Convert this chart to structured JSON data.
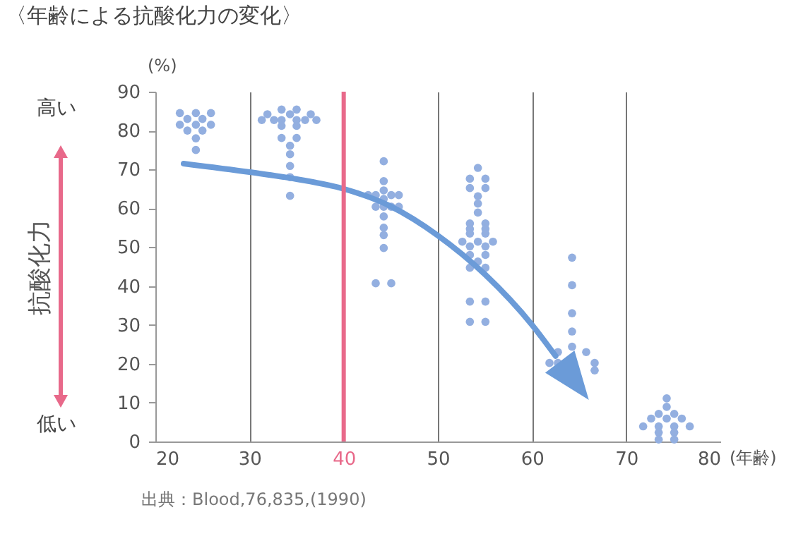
{
  "chart_data": {
    "type": "scatter",
    "title": "〈年齢による抗酸化力の変化〉",
    "xlabel": "(年齢)",
    "ylabel": "(%)",
    "annotations": [
      "抗酸化力",
      "高い",
      "低い",
      "出典：Blood,76,835,(1990)"
    ],
    "xlim": [
      20,
      80
    ],
    "xticks": [
      20,
      30,
      40,
      50,
      60,
      70,
      80
    ],
    "ylim": [
      0,
      90
    ],
    "yticks": [
      0,
      10,
      20,
      30,
      40,
      50,
      60,
      70,
      80,
      90
    ],
    "grid": "x",
    "marker": "circle",
    "ref_lines": [
      {
        "axis": "x",
        "value": 40,
        "color": "#e8698a"
      }
    ],
    "series": [
      {
        "color": "#93afe0",
        "x": [
          22.6,
          24.3,
          25.9,
          23.4,
          25.0,
          22.6,
          24.3,
          25.9,
          23.4,
          25.0,
          24.3,
          24.3,
          33.4,
          35.0,
          31.9,
          34.3,
          36.5,
          31.3,
          32.6,
          33.4,
          35.0,
          35.9,
          37.1,
          33.4,
          35.0,
          33.4,
          35.0,
          34.3,
          34.3,
          34.3,
          34.3,
          34.3,
          44.25,
          44.25,
          44.25,
          42.6,
          43.4,
          45.05,
          45.85,
          44.25,
          43.4,
          44.25,
          45.05,
          45.85,
          44.25,
          44.25,
          44.25,
          44.25,
          43.4,
          45.05,
          54.25,
          53.4,
          55.05,
          53.4,
          55.05,
          54.25,
          54.25,
          54.25,
          53.4,
          55.05,
          53.4,
          55.05,
          53.4,
          55.05,
          52.6,
          54.25,
          55.85,
          53.4,
          55.05,
          53.4,
          55.05,
          54.25,
          53.4,
          55.05,
          53.4,
          55.05,
          53.4,
          55.05,
          64.25,
          64.25,
          64.25,
          64.25,
          64.25,
          62.75,
          65.75,
          61.85,
          62.75,
          66.65,
          66.65,
          74.3,
          74.3,
          73.45,
          75.1,
          72.65,
          74.3,
          75.9,
          71.8,
          73.45,
          75.1,
          76.75,
          73.45,
          75.1,
          73.45,
          75.1
        ],
        "values": [
          84.5,
          84.5,
          84.5,
          83,
          83,
          81.5,
          81.5,
          81.5,
          80,
          80,
          78,
          75,
          85.4,
          85.4,
          84.2,
          84.2,
          84.2,
          82.7,
          82.7,
          82.7,
          82.7,
          82.7,
          82.7,
          81.2,
          81.2,
          78.1,
          78.1,
          76.1,
          73.9,
          70.9,
          68,
          63.2,
          72.1,
          67,
          64.6,
          63.4,
          63.4,
          63.4,
          63.4,
          62.4,
          60.4,
          60.4,
          60.4,
          60.4,
          57.9,
          55,
          53.1,
          49.8,
          40.7,
          40.7,
          70.4,
          67.6,
          67.6,
          65.2,
          65.2,
          63.1,
          61.2,
          58.9,
          56.1,
          56.1,
          54.7,
          54.7,
          53.5,
          53.5,
          51.4,
          51.4,
          51.4,
          50.2,
          50.2,
          48,
          48,
          46.3,
          44.7,
          44.7,
          36,
          36,
          30.8,
          30.8,
          47.3,
          40.2,
          33,
          28.3,
          24.4,
          23,
          23,
          20.2,
          20.2,
          20.2,
          18.3,
          11.1,
          8.9,
          7.1,
          7.1,
          5.9,
          5.9,
          5.9,
          3.9,
          3.9,
          3.9,
          3.9,
          2.3,
          2.3,
          0.5,
          0.5
        ]
      },
      {
        "type": "line",
        "marker": "none",
        "color": "#6b9bd8",
        "x": [
          23,
          30,
          35,
          40,
          45,
          50,
          55,
          60,
          62.5
        ],
        "values": [
          71.5,
          69.3,
          67.5,
          65,
          60.5,
          53,
          43,
          30,
          22
        ]
      }
    ]
  }
}
